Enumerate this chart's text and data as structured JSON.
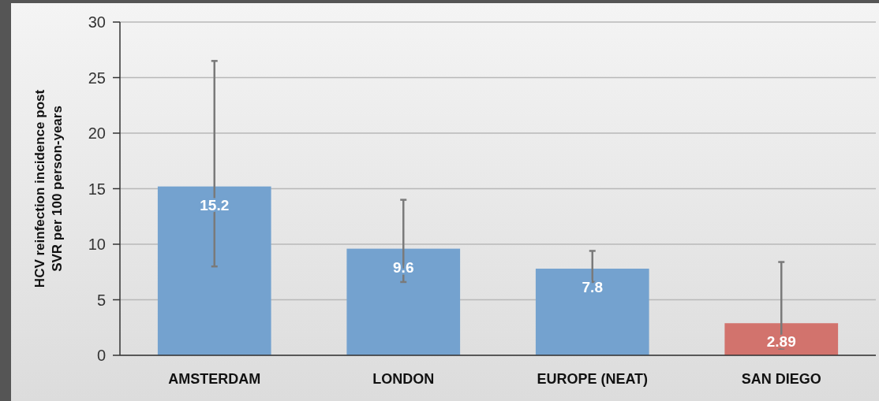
{
  "chart_data": {
    "type": "bar",
    "ylabel": "HCV reinfection  incidence post\nSVR per 100 person-years",
    "categories": [
      "AMSTERDAM",
      "LONDON",
      "EUROPE (NEAT)",
      "SAN DIEGO"
    ],
    "values": [
      15.2,
      9.6,
      7.8,
      2.89
    ],
    "colors": [
      "#74a2cf",
      "#74a2cf",
      "#74a2cf",
      "#d2736d"
    ],
    "errors": [
      [
        8.0,
        26.5
      ],
      [
        6.6,
        14.0
      ],
      [
        6.6,
        9.4
      ],
      [
        0.6,
        8.4
      ]
    ],
    "data_labels": true,
    "ylim": [
      0,
      30
    ],
    "yticks": [
      0,
      5,
      10,
      15,
      20,
      25,
      30
    ],
    "grid": "y"
  }
}
